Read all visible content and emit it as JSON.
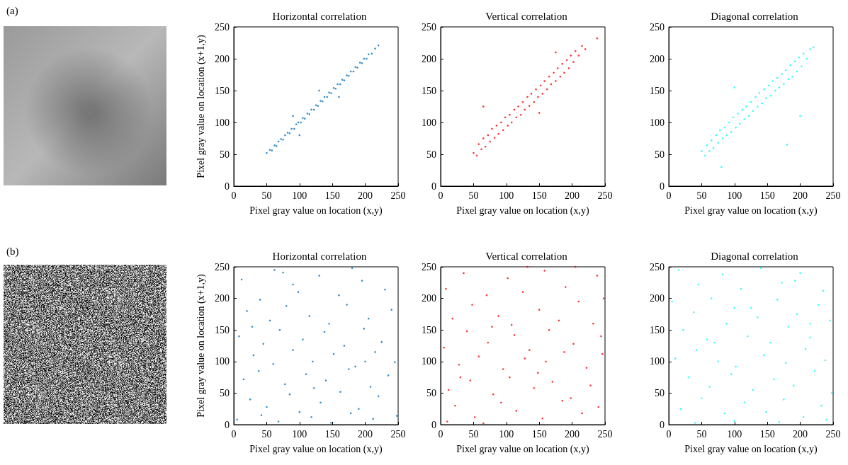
{
  "panel_labels": [
    "(a)",
    "(b)"
  ],
  "chart_data": [
    {
      "type": "scatter",
      "title": "Horizontal correlation",
      "x_label": "Pixel gray value on location (x,y)",
      "y_label": "Pixel gray value on location (x+1,y)",
      "color": "#0072bd",
      "marker": "dot",
      "grid": false,
      "xlim": [
        0,
        250
      ],
      "ylim": [
        0,
        250
      ],
      "xticks": [
        0,
        50,
        100,
        150,
        200,
        250
      ],
      "yticks": [
        0,
        50,
        100,
        150,
        200,
        250
      ],
      "x": [
        50,
        55,
        58,
        62,
        65,
        68,
        72,
        75,
        78,
        82,
        85,
        88,
        92,
        95,
        98,
        102,
        105,
        108,
        112,
        115,
        118,
        122,
        125,
        128,
        132,
        135,
        138,
        142,
        145,
        148,
        152,
        155,
        158,
        162,
        165,
        168,
        172,
        175,
        178,
        182,
        185,
        188,
        192,
        195,
        198,
        202,
        205,
        210,
        215,
        220,
        90,
        130,
        160,
        100
      ],
      "values": [
        52,
        57,
        56,
        64,
        63,
        70,
        74,
        73,
        80,
        84,
        83,
        90,
        90,
        97,
        100,
        100,
        107,
        106,
        114,
        113,
        120,
        120,
        127,
        126,
        134,
        133,
        140,
        140,
        147,
        146,
        154,
        153,
        160,
        160,
        167,
        166,
        174,
        173,
        180,
        180,
        187,
        186,
        194,
        193,
        200,
        200,
        207,
        208,
        216,
        221,
        110,
        150,
        140,
        80
      ]
    },
    {
      "type": "scatter",
      "title": "Vertical correlation",
      "x_label": "Pixel gray value on location (x,y)",
      "color": "#ff0000",
      "marker": "dot",
      "grid": false,
      "xlim": [
        0,
        250
      ],
      "ylim": [
        0,
        250
      ],
      "xticks": [
        0,
        50,
        100,
        150,
        200,
        250
      ],
      "yticks": [
        0,
        50,
        100,
        150,
        200,
        250
      ],
      "x": [
        50,
        55,
        58,
        62,
        65,
        68,
        72,
        75,
        78,
        82,
        85,
        88,
        92,
        95,
        98,
        102,
        105,
        108,
        112,
        115,
        118,
        122,
        125,
        128,
        132,
        135,
        138,
        142,
        145,
        148,
        152,
        155,
        158,
        162,
        165,
        168,
        172,
        175,
        178,
        182,
        185,
        188,
        192,
        195,
        198,
        202,
        205,
        210,
        215,
        220,
        65,
        150,
        175,
        238
      ],
      "values": [
        52,
        48,
        66,
        58,
        75,
        62,
        80,
        70,
        90,
        76,
        95,
        82,
        100,
        88,
        108,
        95,
        112,
        100,
        120,
        108,
        125,
        112,
        132,
        120,
        140,
        126,
        145,
        132,
        152,
        140,
        158,
        145,
        165,
        152,
        172,
        160,
        178,
        165,
        185,
        172,
        192,
        178,
        198,
        185,
        205,
        195,
        212,
        205,
        220,
        215,
        125,
        115,
        210,
        232
      ]
    },
    {
      "type": "scatter",
      "title": "Diagonal correlation",
      "x_label": "Pixel gray value on location (x,y)",
      "color": "#00ffff",
      "marker": "dot",
      "grid": false,
      "xlim": [
        0,
        250
      ],
      "ylim": [
        0,
        250
      ],
      "xticks": [
        0,
        50,
        100,
        150,
        200,
        250
      ],
      "yticks": [
        0,
        50,
        100,
        150,
        200,
        250
      ],
      "x": [
        50,
        55,
        58,
        62,
        65,
        68,
        72,
        75,
        78,
        82,
        85,
        88,
        92,
        95,
        98,
        102,
        105,
        108,
        112,
        115,
        118,
        122,
        125,
        128,
        132,
        135,
        138,
        142,
        145,
        148,
        152,
        155,
        158,
        162,
        165,
        168,
        172,
        175,
        178,
        182,
        185,
        188,
        192,
        195,
        198,
        202,
        205,
        210,
        215,
        220,
        80,
        200,
        180,
        100
      ],
      "values": [
        55,
        48,
        64,
        55,
        72,
        60,
        80,
        68,
        88,
        75,
        92,
        80,
        100,
        85,
        108,
        92,
        114,
        98,
        120,
        105,
        125,
        110,
        132,
        118,
        140,
        125,
        146,
        130,
        152,
        138,
        158,
        142,
        165,
        150,
        170,
        155,
        176,
        160,
        182,
        168,
        190,
        172,
        196,
        180,
        202,
        188,
        208,
        200,
        215,
        218,
        30,
        110,
        65,
        155
      ]
    },
    {
      "type": "scatter",
      "title": "Horizontal correlation",
      "x_label": "Pixel gray value on location (x,y)",
      "y_label": "Pixel gray value on location (x+1,y)",
      "color": "#0072bd",
      "marker": "dot",
      "grid": false,
      "xlim": [
        0,
        250
      ],
      "ylim": [
        0,
        250
      ],
      "xticks": [
        0,
        50,
        100,
        150,
        200,
        250
      ],
      "yticks": [
        0,
        50,
        100,
        150,
        200,
        250
      ],
      "x": [
        12,
        40,
        75,
        98,
        130,
        160,
        195,
        230,
        20,
        55,
        80,
        115,
        145,
        172,
        205,
        240,
        8,
        45,
        70,
        105,
        138,
        168,
        198,
        225,
        30,
        60,
        90,
        120,
        152,
        185,
        215,
        245,
        15,
        38,
        78,
        110,
        140,
        175,
        208,
        235,
        25,
        50,
        85,
        100,
        132,
        162,
        190,
        220,
        5,
        42,
        68,
        118,
        148,
        178,
        212,
        248,
        62,
        180,
        28,
        122,
        200,
        90
      ],
      "values": [
        230,
        198,
        241,
        210,
        236,
        205,
        228,
        214,
        180,
        165,
        188,
        172,
        160,
        190,
        168,
        182,
        140,
        128,
        150,
        135,
        147,
        125,
        152,
        131,
        110,
        96,
        118,
        100,
        112,
        92,
        115,
        99,
        72,
        85,
        64,
        80,
        70,
        88,
        60,
        78,
        40,
        28,
        48,
        20,
        35,
        52,
        25,
        45,
        8,
        15,
        5,
        12,
        3,
        18,
        9,
        14,
        245,
        248,
        155,
        58,
        100,
        222
      ]
    },
    {
      "type": "scatter",
      "title": "Vertical correlation",
      "x_label": "Pixel gray value on location (x,y)",
      "color": "#ff0000",
      "marker": "dot",
      "grid": false,
      "xlim": [
        0,
        250
      ],
      "ylim": [
        0,
        250
      ],
      "xticks": [
        0,
        50,
        100,
        150,
        200,
        250
      ],
      "yticks": [
        0,
        50,
        100,
        150,
        200,
        250
      ],
      "x": [
        8,
        35,
        70,
        102,
        125,
        158,
        190,
        238,
        18,
        48,
        88,
        108,
        150,
        180,
        210,
        232,
        5,
        40,
        72,
        112,
        135,
        165,
        202,
        244,
        28,
        58,
        95,
        128,
        148,
        188,
        222,
        246,
        12,
        45,
        80,
        105,
        142,
        170,
        198,
        228,
        22,
        52,
        92,
        115,
        155,
        185,
        215,
        240,
        65,
        10,
        132,
        205,
        78,
        160,
        30,
        248
      ],
      "values": [
        215,
        240,
        205,
        232,
        210,
        244,
        218,
        236,
        168,
        190,
        172,
        158,
        182,
        165,
        195,
        160,
        122,
        148,
        130,
        142,
        118,
        150,
        128,
        140,
        95,
        108,
        88,
        105,
        82,
        115,
        90,
        112,
        55,
        70,
        48,
        75,
        58,
        68,
        42,
        62,
        30,
        12,
        35,
        22,
        10,
        38,
        18,
        28,
        2,
        5,
        250,
        250,
        155,
        100,
        75,
        200
      ]
    },
    {
      "type": "scatter",
      "title": "Diagonal correlation",
      "x_label": "Pixel gray value on location (x,y)",
      "color": "#00ffff",
      "marker": "dot",
      "grid": false,
      "xlim": [
        0,
        250
      ],
      "ylim": [
        0,
        250
      ],
      "xticks": [
        0,
        50,
        100,
        150,
        200,
        250
      ],
      "yticks": [
        0,
        50,
        100,
        150,
        200,
        250
      ],
      "x": [
        15,
        45,
        82,
        110,
        140,
        172,
        200,
        235,
        5,
        38,
        65,
        100,
        135,
        165,
        195,
        228,
        22,
        58,
        88,
        120,
        155,
        182,
        215,
        245,
        10,
        42,
        75,
        102,
        145,
        178,
        208,
        238,
        30,
        62,
        95,
        128,
        160,
        190,
        222,
        248,
        18,
        50,
        85,
        115,
        148,
        175,
        205,
        232,
        40,
        100,
        168,
        240,
        70,
        125,
        192,
        215
      ],
      "values": [
        245,
        222,
        238,
        215,
        248,
        225,
        240,
        212,
        195,
        178,
        200,
        185,
        170,
        198,
        175,
        190,
        150,
        135,
        160,
        140,
        130,
        155,
        138,
        165,
        105,
        118,
        100,
        92,
        110,
        98,
        120,
        102,
        75,
        60,
        80,
        55,
        72,
        62,
        85,
        50,
        25,
        42,
        18,
        35,
        20,
        40,
        12,
        30,
        3,
        6,
        4,
        8,
        130,
        185,
        228,
        160
      ]
    }
  ]
}
